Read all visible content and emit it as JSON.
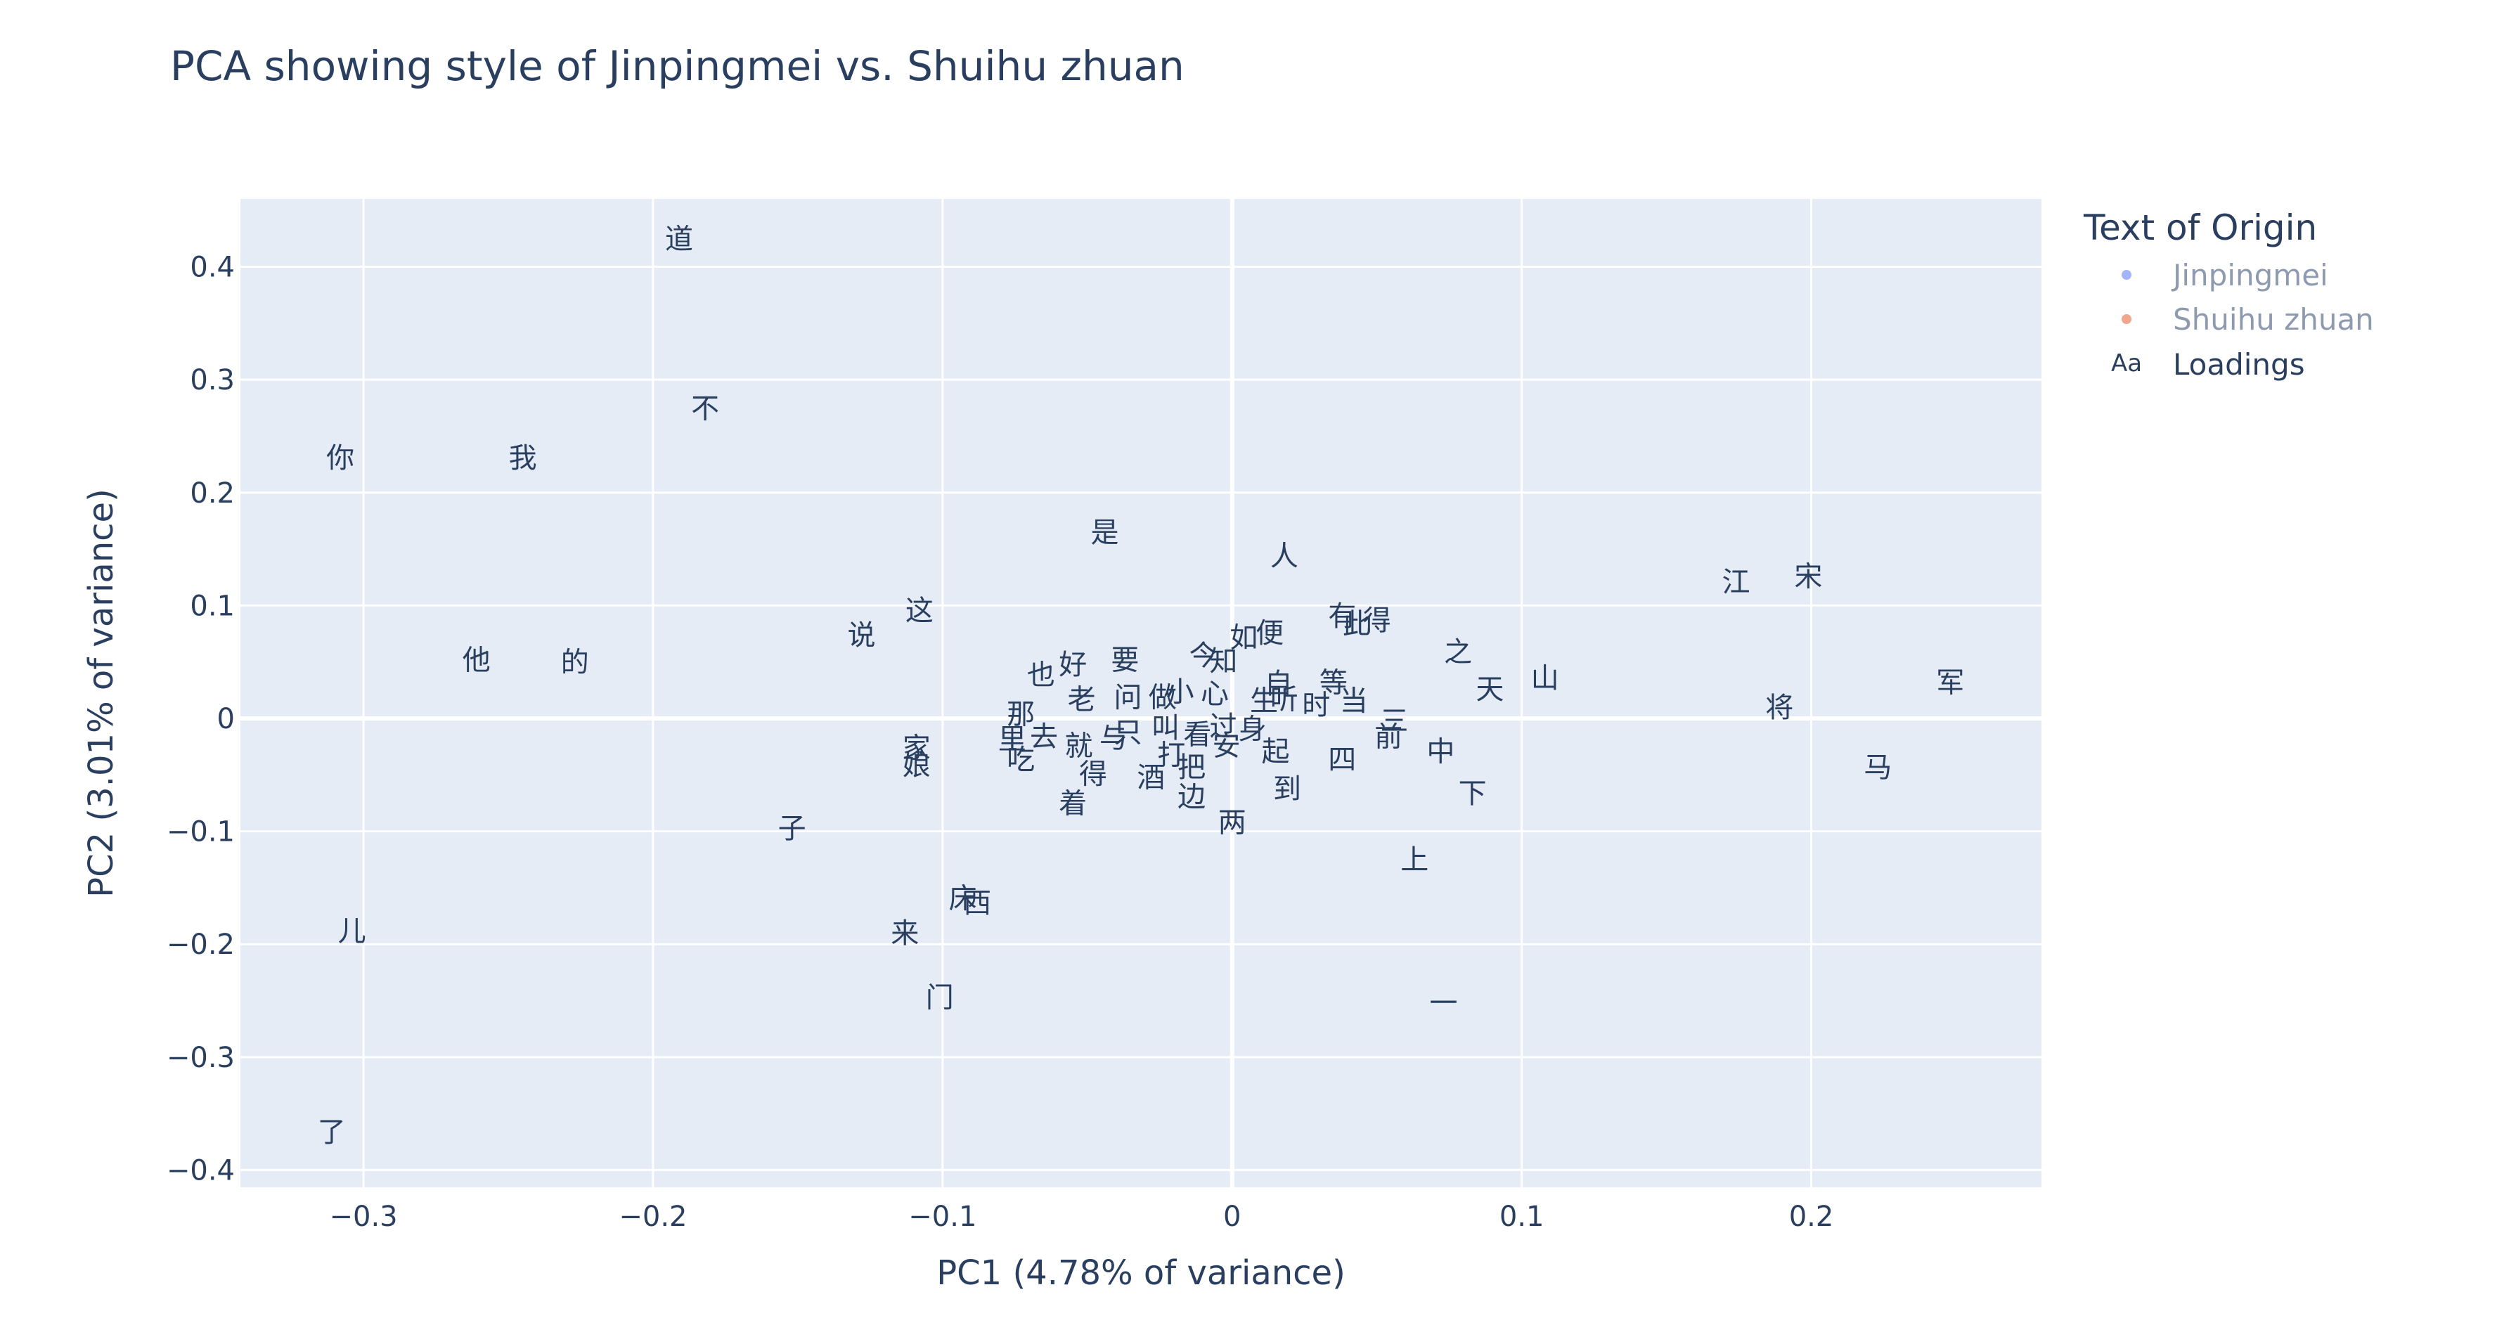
{
  "chart_data": {
    "type": "scatter",
    "title": "PCA showing style of Jinpingmei vs. Shuihu zhuan",
    "xlabel": "PC1 (4.78% of variance)",
    "ylabel": "PC2 (3.01% of variance)",
    "xlim": [
      -0.3425,
      0.2795
    ],
    "ylim": [
      -0.4153,
      0.4601
    ],
    "x_ticks": [
      -0.3,
      -0.2,
      -0.1,
      0,
      0.1,
      0.2
    ],
    "x_tick_labels": [
      "−0.3",
      "−0.2",
      "−0.1",
      "0",
      "0.1",
      "0.2"
    ],
    "y_ticks": [
      -0.4,
      -0.3,
      -0.2,
      -0.1,
      0,
      0.1,
      0.2,
      0.3,
      0.4
    ],
    "y_tick_labels": [
      "−0.4",
      "−0.3",
      "−0.2",
      "−0.1",
      "0",
      "0.1",
      "0.2",
      "0.3",
      "0.4"
    ],
    "grid": true,
    "legend": {
      "title": "Text of Origin",
      "placement": "right",
      "entries": [
        {
          "name": "Jinpingmei",
          "marker": "dot",
          "color": "#a3b4f7",
          "visible": false
        },
        {
          "name": "Shuihu zhuan",
          "marker": "dot",
          "color": "#f0a58e",
          "visible": false
        },
        {
          "name": "Loadings",
          "marker": "Aa",
          "color": "#2a3f5f",
          "visible": true
        }
      ]
    },
    "series": [
      {
        "name": "Loadings",
        "mode": "text",
        "points": [
          {
            "text": "道",
            "x": -0.191,
            "y": 0.425
          },
          {
            "text": "不",
            "x": -0.182,
            "y": 0.275
          },
          {
            "text": "你",
            "x": -0.308,
            "y": 0.231
          },
          {
            "text": "我",
            "x": -0.245,
            "y": 0.231
          },
          {
            "text": "他",
            "x": -0.261,
            "y": 0.052
          },
          {
            "text": "的",
            "x": -0.227,
            "y": 0.05
          },
          {
            "text": "是",
            "x": -0.044,
            "y": 0.165
          },
          {
            "text": "人",
            "x": 0.018,
            "y": 0.144
          },
          {
            "text": "说",
            "x": -0.128,
            "y": 0.074
          },
          {
            "text": "这",
            "x": -0.108,
            "y": 0.096
          },
          {
            "text": "江",
            "x": 0.174,
            "y": 0.121
          },
          {
            "text": "宋",
            "x": 0.199,
            "y": 0.126
          },
          {
            "text": "有",
            "x": 0.038,
            "y": 0.091
          },
          {
            "text": "此",
            "x": 0.043,
            "y": 0.084
          },
          {
            "text": "得",
            "x": 0.05,
            "y": 0.087
          },
          {
            "text": "之",
            "x": 0.078,
            "y": 0.059
          },
          {
            "text": "山",
            "x": 0.108,
            "y": 0.036
          },
          {
            "text": "天",
            "x": 0.089,
            "y": 0.026
          },
          {
            "text": "军",
            "x": 0.248,
            "y": 0.032
          },
          {
            "text": "将",
            "x": 0.189,
            "y": 0.01
          },
          {
            "text": "马",
            "x": 0.223,
            "y": -0.043
          },
          {
            "text": "如",
            "x": 0.004,
            "y": 0.072
          },
          {
            "text": "便",
            "x": 0.013,
            "y": 0.076
          },
          {
            "text": "今",
            "x": -0.01,
            "y": 0.056
          },
          {
            "text": "知",
            "x": -0.003,
            "y": 0.051
          },
          {
            "text": "好",
            "x": -0.055,
            "y": 0.048
          },
          {
            "text": "要",
            "x": -0.037,
            "y": 0.052
          },
          {
            "text": "也",
            "x": -0.066,
            "y": 0.039
          },
          {
            "text": "自",
            "x": 0.016,
            "y": 0.031
          },
          {
            "text": "等",
            "x": 0.035,
            "y": 0.032
          },
          {
            "text": "当",
            "x": 0.042,
            "y": 0.016
          },
          {
            "text": "老",
            "x": -0.052,
            "y": 0.017
          },
          {
            "text": "问",
            "x": -0.036,
            "y": 0.019
          },
          {
            "text": "做",
            "x": -0.024,
            "y": 0.019
          },
          {
            "text": "小",
            "x": -0.018,
            "y": 0.024
          },
          {
            "text": "心",
            "x": -0.006,
            "y": 0.022
          },
          {
            "text": "生",
            "x": 0.011,
            "y": 0.016
          },
          {
            "text": "听",
            "x": 0.018,
            "y": 0.017
          },
          {
            "text": "时",
            "x": 0.029,
            "y": 0.012
          },
          {
            "text": "三",
            "x": 0.056,
            "y": -0.002
          },
          {
            "text": "那",
            "x": -0.073,
            "y": 0.004
          },
          {
            "text": "里",
            "x": -0.076,
            "y": -0.018
          },
          {
            "text": "去",
            "x": -0.065,
            "y": -0.016
          },
          {
            "text": "就",
            "x": -0.053,
            "y": -0.024
          },
          {
            "text": "与",
            "x": -0.041,
            "y": -0.017
          },
          {
            "text": "只",
            "x": -0.036,
            "y": -0.012
          },
          {
            "text": "叫",
            "x": -0.023,
            "y": -0.008
          },
          {
            "text": "看",
            "x": -0.012,
            "y": -0.014
          },
          {
            "text": "过",
            "x": -0.003,
            "y": -0.007
          },
          {
            "text": "身",
            "x": 0.007,
            "y": -0.009
          },
          {
            "text": "前",
            "x": 0.054,
            "y": -0.016
          },
          {
            "text": "中",
            "x": 0.072,
            "y": -0.029
          },
          {
            "text": "家",
            "x": -0.109,
            "y": -0.026
          },
          {
            "text": "娘",
            "x": -0.109,
            "y": -0.041
          },
          {
            "text": "吃",
            "x": -0.073,
            "y": -0.036
          },
          {
            "text": "打",
            "x": -0.021,
            "y": -0.032
          },
          {
            "text": "把",
            "x": -0.014,
            "y": -0.043
          },
          {
            "text": "安",
            "x": -0.002,
            "y": -0.024
          },
          {
            "text": "起",
            "x": 0.015,
            "y": -0.029
          },
          {
            "text": "四",
            "x": 0.038,
            "y": -0.036
          },
          {
            "text": "下",
            "x": 0.083,
            "y": -0.066
          },
          {
            "text": "得",
            "x": -0.048,
            "y": -0.049
          },
          {
            "text": "酒",
            "x": -0.028,
            "y": -0.052
          },
          {
            "text": "到",
            "x": 0.019,
            "y": -0.062
          },
          {
            "text": "边",
            "x": -0.014,
            "y": -0.069
          },
          {
            "text": "着",
            "x": -0.055,
            "y": -0.075
          },
          {
            "text": "两",
            "x": 0.0,
            "y": -0.092
          },
          {
            "text": "子",
            "x": -0.152,
            "y": -0.097
          },
          {
            "text": "上",
            "x": 0.063,
            "y": -0.125
          },
          {
            "text": "床",
            "x": -0.093,
            "y": -0.159
          },
          {
            "text": "西",
            "x": -0.088,
            "y": -0.163
          },
          {
            "text": "来",
            "x": -0.113,
            "y": -0.19
          },
          {
            "text": "儿",
            "x": -0.304,
            "y": -0.188
          },
          {
            "text": "门",
            "x": -0.101,
            "y": -0.247
          },
          {
            "text": "一",
            "x": 0.073,
            "y": -0.252
          },
          {
            "text": "了",
            "x": -0.311,
            "y": -0.366
          }
        ]
      }
    ]
  }
}
